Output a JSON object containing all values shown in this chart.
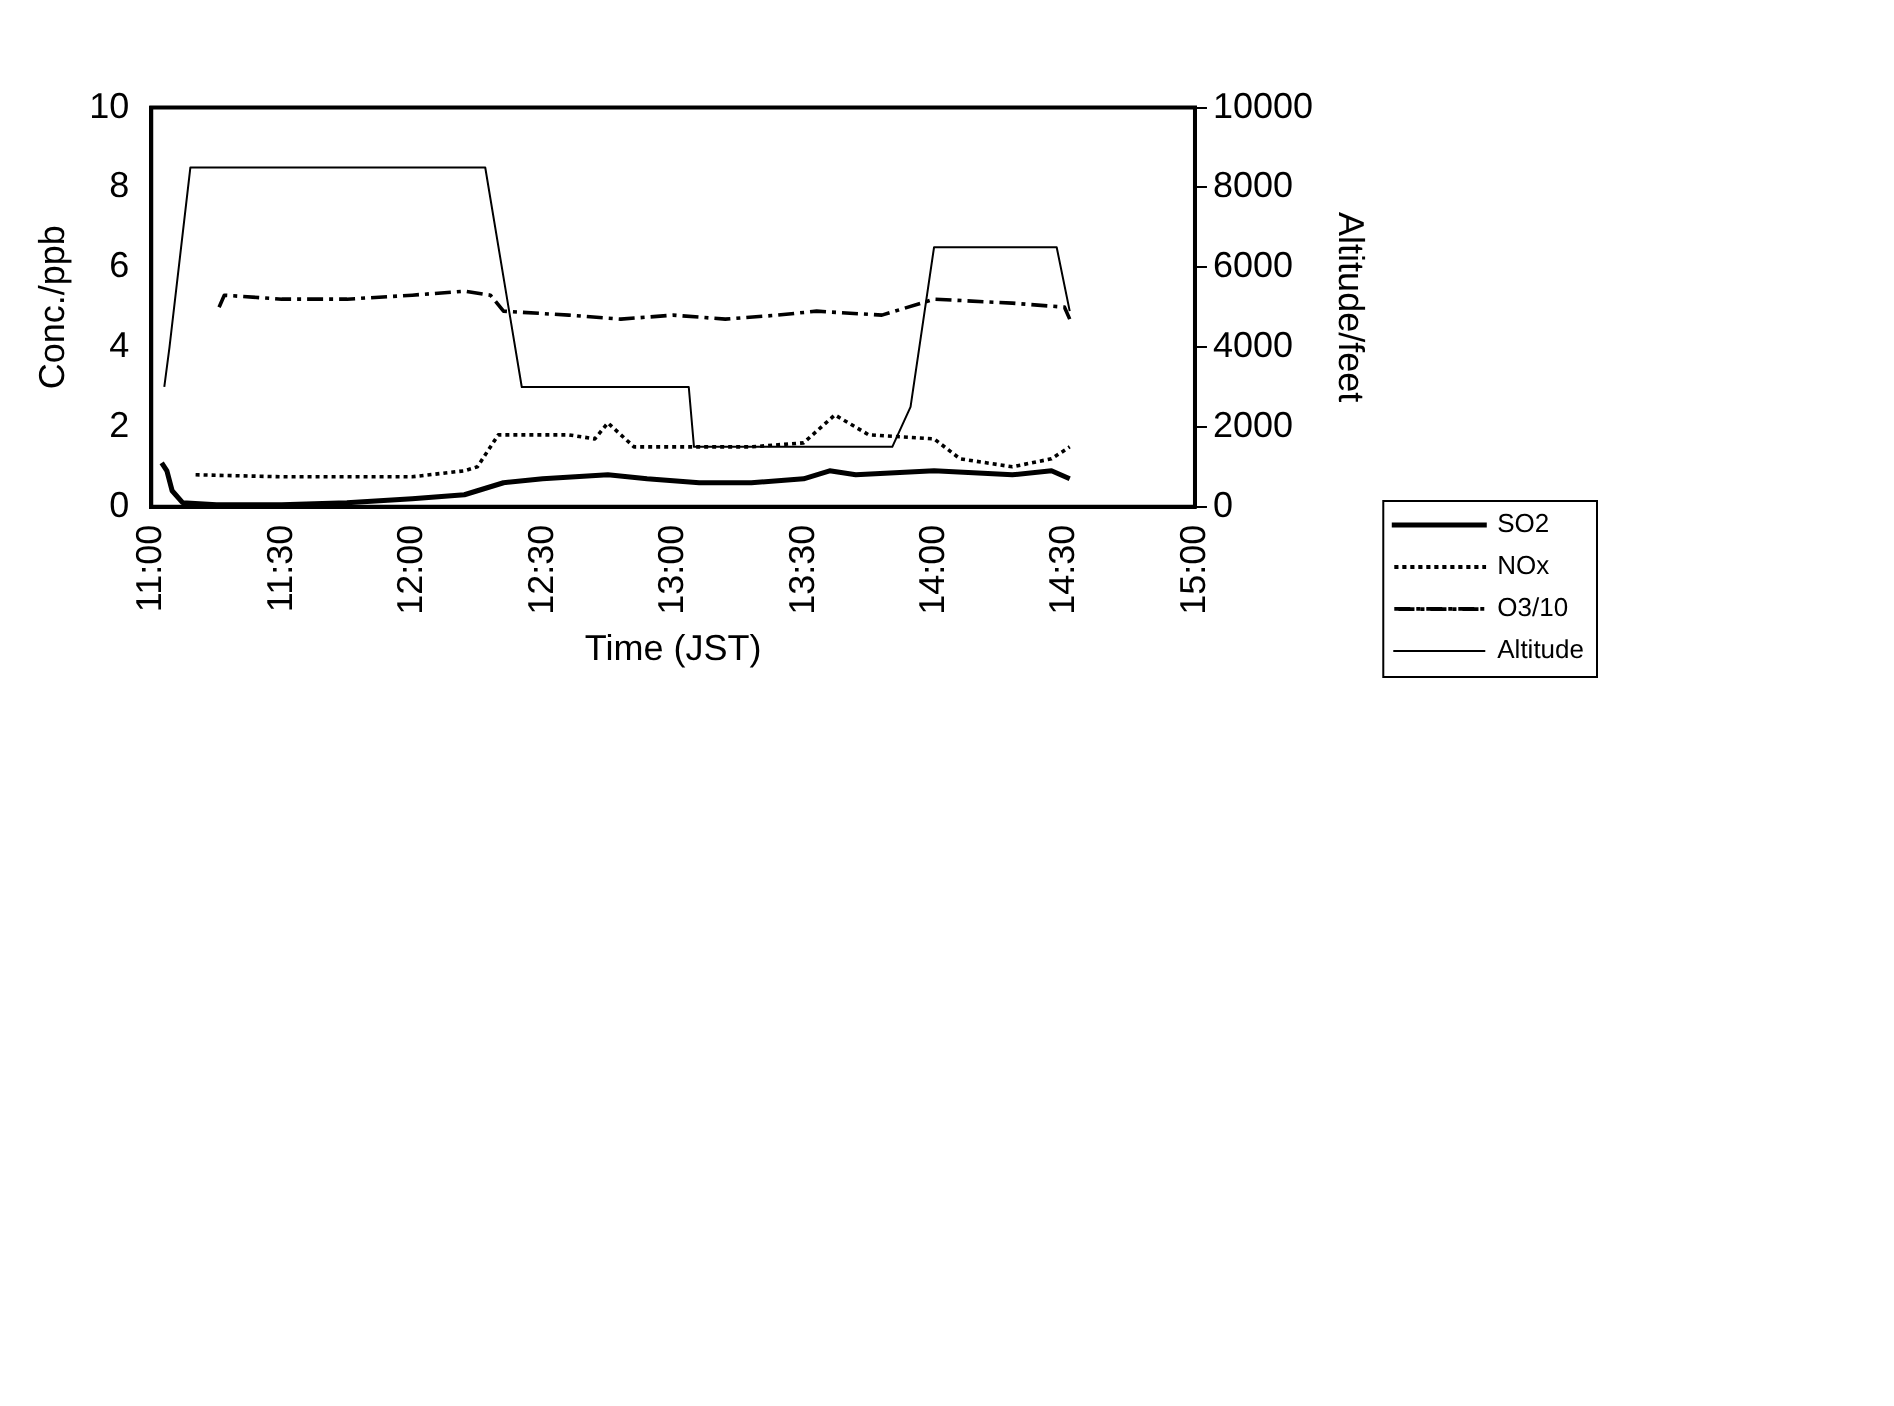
{
  "chart_data": {
    "type": "line",
    "xlabel": "Time (JST)",
    "ylabel": "Conc./ppb",
    "y2label": "Altitude/feet",
    "xlim": [
      11,
      15
    ],
    "xticks": [
      {
        "value": 11,
        "label": "11:00"
      },
      {
        "value": 11.5,
        "label": "11:30"
      },
      {
        "value": 12,
        "label": "12:00"
      },
      {
        "value": 12.5,
        "label": "12:30"
      },
      {
        "value": 13,
        "label": "13:00"
      },
      {
        "value": 13.5,
        "label": "13:30"
      },
      {
        "value": 14,
        "label": "14:00"
      },
      {
        "value": 14.5,
        "label": "14:30"
      },
      {
        "value": 15,
        "label": "15:00"
      }
    ],
    "ylim": [
      0,
      10
    ],
    "yticks": [
      0,
      2,
      4,
      6,
      8,
      10
    ],
    "y2lim": [
      0,
      10000
    ],
    "y2ticks": [
      0,
      2000,
      4000,
      6000,
      8000,
      10000
    ],
    "grid": false,
    "legend": "right",
    "marker": "none",
    "series": [
      {
        "name": "SO2",
        "color": "#000000",
        "line_style": "solid",
        "x": [
          11.04,
          11.06,
          11.08,
          11.12,
          11.25,
          11.5,
          11.75,
          12.0,
          12.2,
          12.25,
          12.35,
          12.5,
          12.75,
          12.9,
          13.1,
          13.3,
          13.5,
          13.6,
          13.7,
          14.0,
          14.3,
          14.45,
          14.52
        ],
        "values": [
          1.1,
          0.9,
          0.4,
          0.1,
          0.05,
          0.05,
          0.1,
          0.2,
          0.3,
          0.4,
          0.6,
          0.7,
          0.8,
          0.7,
          0.6,
          0.6,
          0.7,
          0.9,
          0.8,
          0.9,
          0.8,
          0.9,
          0.7
        ]
      },
      {
        "name": "NOx",
        "color": "#000000",
        "line_style": "dotted",
        "x": [
          11.17,
          11.5,
          11.75,
          12.0,
          12.2,
          12.25,
          12.33,
          12.6,
          12.7,
          12.75,
          12.85,
          13.1,
          13.3,
          13.5,
          13.62,
          13.75,
          14.0,
          14.1,
          14.3,
          14.45,
          14.52
        ],
        "values": [
          0.8,
          0.75,
          0.75,
          0.75,
          0.9,
          1.0,
          1.8,
          1.8,
          1.7,
          2.1,
          1.5,
          1.5,
          1.5,
          1.6,
          2.3,
          1.8,
          1.7,
          1.2,
          1.0,
          1.2,
          1.5
        ]
      },
      {
        "name": "O3/10",
        "color": "#000000",
        "line_style": "dashed",
        "x": [
          11.26,
          11.28,
          11.5,
          11.75,
          12.0,
          12.2,
          12.3,
          12.35,
          12.6,
          12.8,
          13.0,
          13.2,
          13.4,
          13.55,
          13.8,
          14.0,
          14.3,
          14.5,
          14.52
        ],
        "values": [
          5.0,
          5.3,
          5.2,
          5.2,
          5.3,
          5.4,
          5.3,
          4.9,
          4.8,
          4.7,
          4.8,
          4.7,
          4.8,
          4.9,
          4.8,
          5.2,
          5.1,
          5.0,
          4.7
        ]
      },
      {
        "name": "Altitude",
        "color": "#000000",
        "line_style": "solid",
        "axis": "y2",
        "x": [
          11.05,
          11.07,
          11.15,
          12.28,
          12.42,
          13.06,
          13.08,
          13.84,
          13.91,
          14.0,
          14.47,
          14.52
        ],
        "values": [
          3000,
          4000,
          8500,
          8500,
          3000,
          3000,
          1500,
          1500,
          2500,
          6500,
          6500,
          4900
        ]
      }
    ]
  }
}
